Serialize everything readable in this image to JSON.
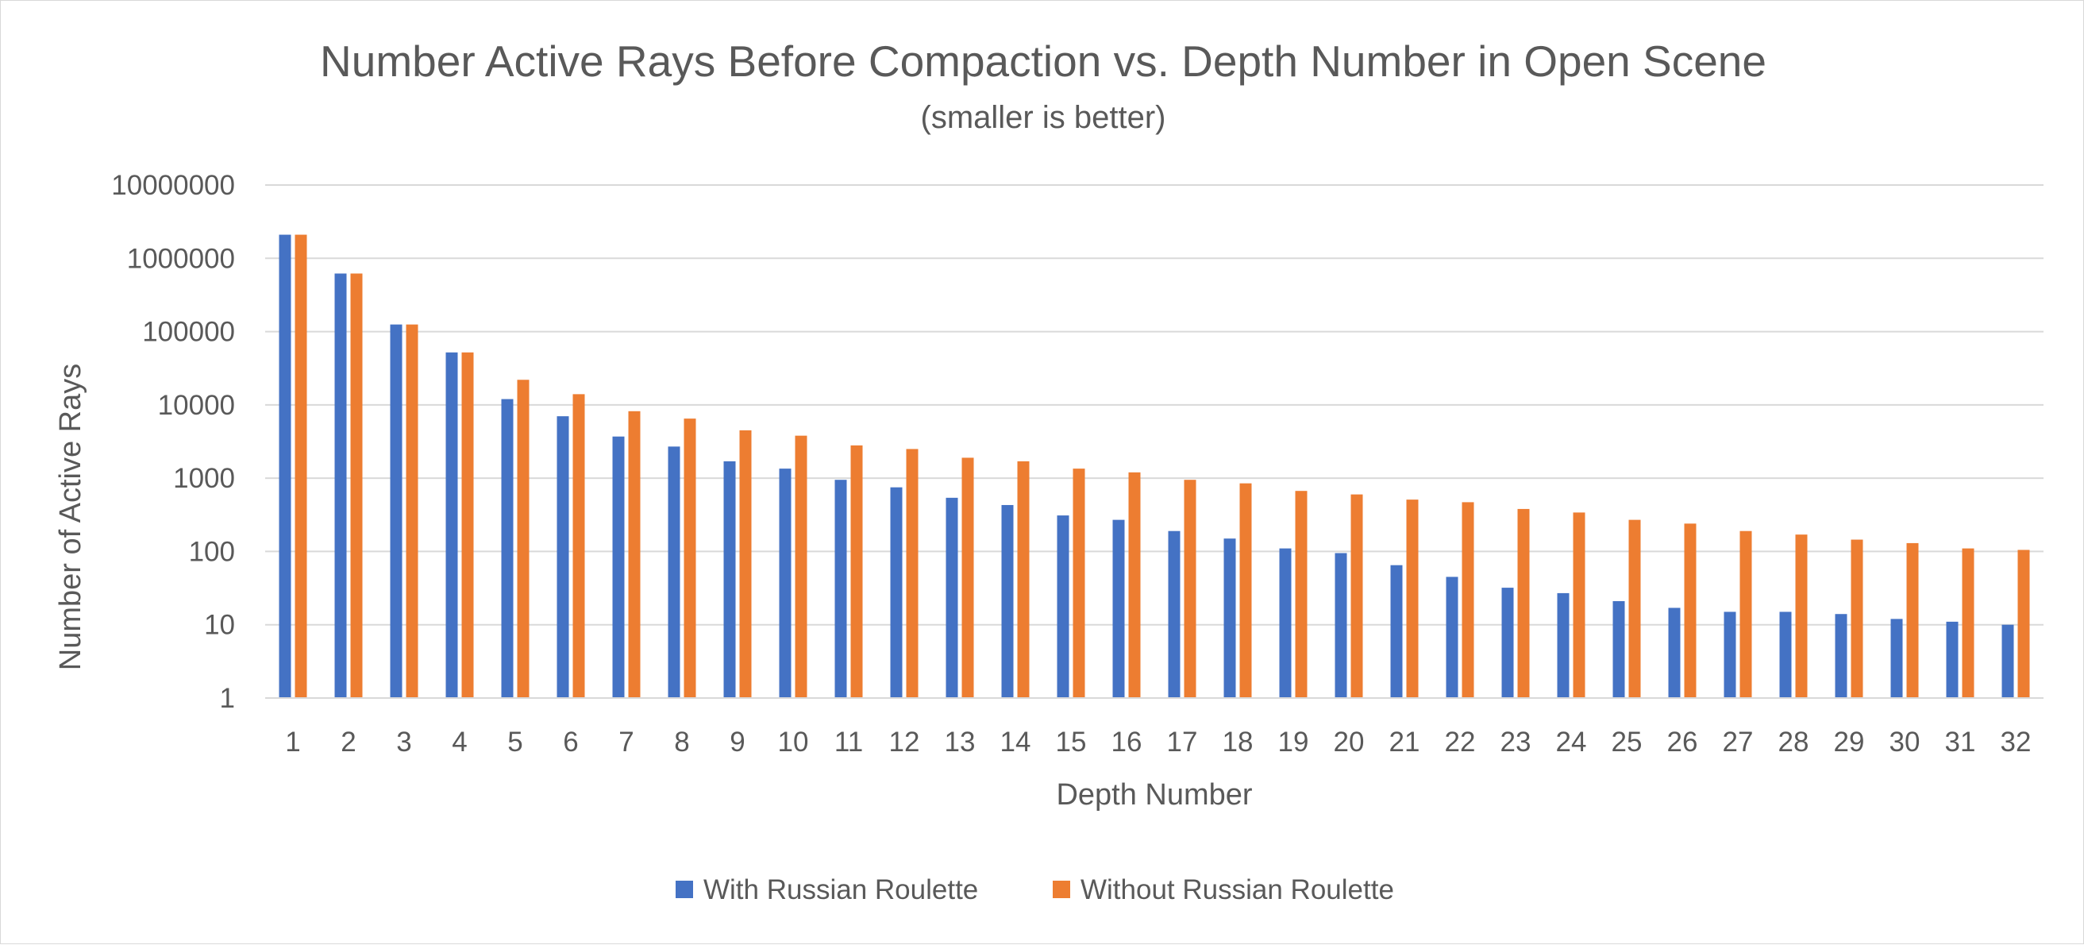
{
  "chart_data": {
    "type": "bar",
    "title": "Number Active Rays Before Compaction vs. Depth Number in Open Scene",
    "subtitle": "(smaller is better)",
    "xlabel": "Depth Number",
    "ylabel": "Number of Active Rays",
    "y_scale": "log",
    "ylim": [
      1,
      10000000
    ],
    "y_ticks": [
      "1",
      "10",
      "100",
      "1000",
      "10000",
      "100000",
      "1000000",
      "10000000"
    ],
    "grid": true,
    "legend_position": "bottom",
    "categories": [
      "1",
      "2",
      "3",
      "4",
      "5",
      "6",
      "7",
      "8",
      "9",
      "10",
      "11",
      "12",
      "13",
      "14",
      "15",
      "16",
      "17",
      "18",
      "19",
      "20",
      "21",
      "22",
      "23",
      "24",
      "25",
      "26",
      "27",
      "28",
      "29",
      "30",
      "31",
      "32"
    ],
    "series": [
      {
        "name": "With Russian Roulette",
        "color": "#4472c4",
        "values": [
          2100000,
          620000,
          125000,
          52000,
          12000,
          7000,
          3700,
          2700,
          1700,
          1350,
          950,
          750,
          540,
          430,
          310,
          270,
          190,
          150,
          110,
          95,
          65,
          45,
          32,
          27,
          21,
          17,
          15,
          15,
          14,
          12,
          11,
          10
        ]
      },
      {
        "name": "Without Russian Roulette",
        "color": "#ed7d31",
        "values": [
          2100000,
          620000,
          125000,
          52000,
          22000,
          14000,
          8200,
          6500,
          4500,
          3800,
          2800,
          2500,
          1900,
          1700,
          1350,
          1200,
          950,
          850,
          670,
          600,
          510,
          470,
          380,
          340,
          270,
          240,
          190,
          170,
          145,
          130,
          110,
          105
        ]
      }
    ]
  }
}
